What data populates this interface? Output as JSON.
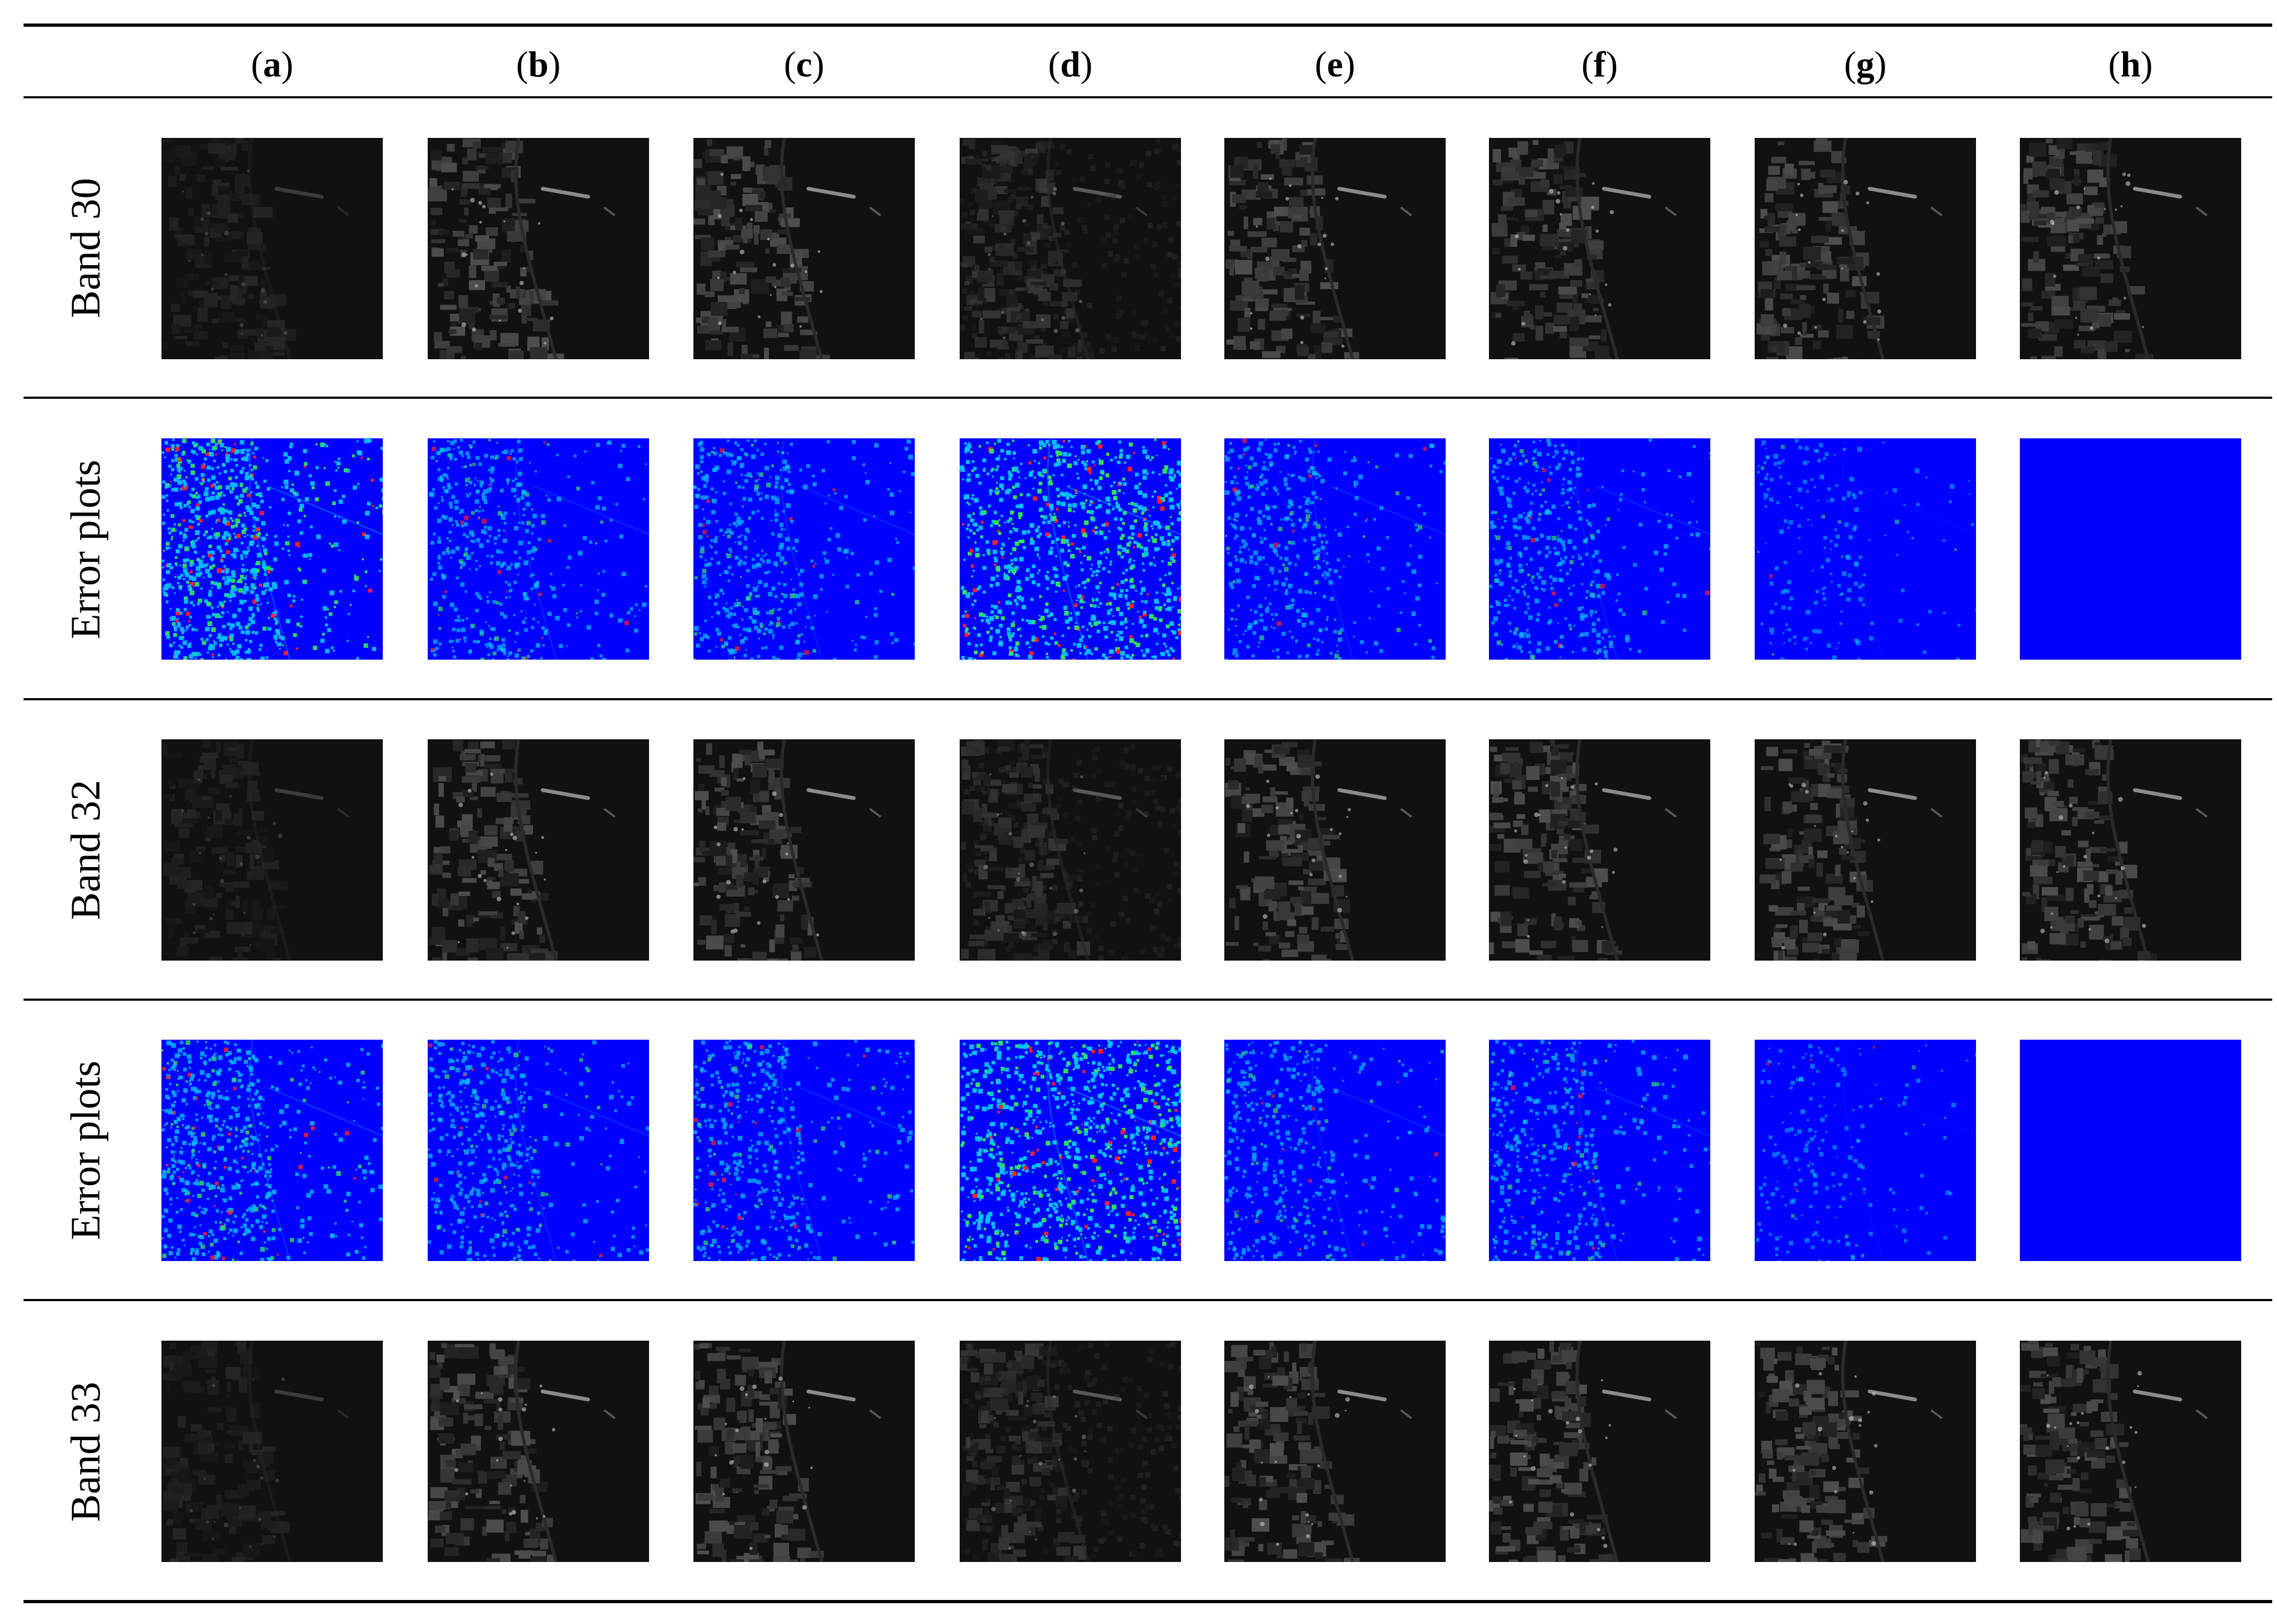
{
  "figure": {
    "columns": [
      {
        "id": "a",
        "letter": "a"
      },
      {
        "id": "b",
        "letter": "b"
      },
      {
        "id": "c",
        "letter": "c"
      },
      {
        "id": "d",
        "letter": "d"
      },
      {
        "id": "e",
        "letter": "e"
      },
      {
        "id": "f",
        "letter": "f"
      },
      {
        "id": "g",
        "letter": "g"
      },
      {
        "id": "h",
        "letter": "h"
      }
    ],
    "rows": [
      {
        "label": "Band 30",
        "kind": "band"
      },
      {
        "label": "Error plots",
        "kind": "error"
      },
      {
        "label": "Band 32",
        "kind": "band"
      },
      {
        "label": "Error plots",
        "kind": "error"
      },
      {
        "label": "Band 33",
        "kind": "band"
      }
    ],
    "colors": {
      "rule": "#000000",
      "band_background": "#111111",
      "error_background": "#0000ff",
      "error_high": "#ff2020",
      "error_mid": "#30e060",
      "error_low": "#00c0ff"
    }
  }
}
